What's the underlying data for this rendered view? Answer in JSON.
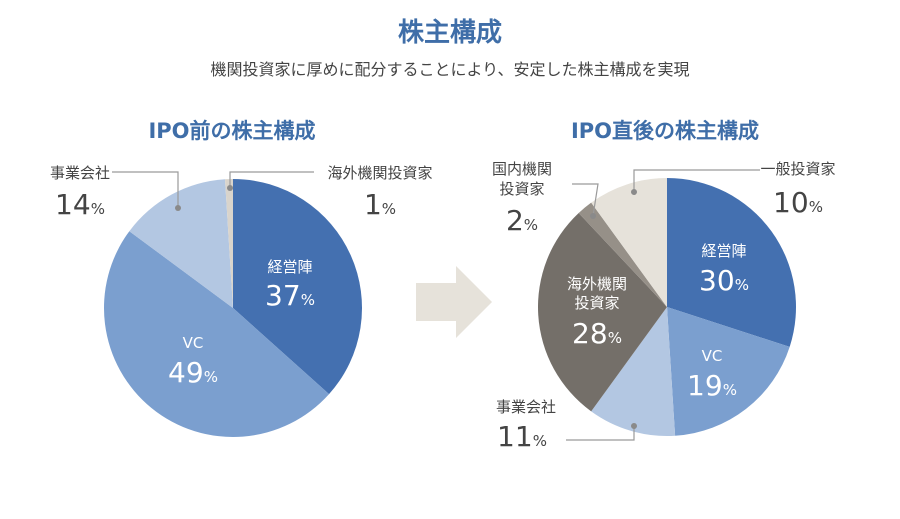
{
  "title": "株主構成",
  "subtitle": "機関投資家に厚めに配分することにより、安定した株主構成を実現",
  "colors": {
    "accent": "#3f6ea8",
    "management": "#4470b0",
    "vc": "#7b9fcf",
    "corporate": "#b3c7e2",
    "foreign_institutional": "#d9d4cc",
    "domestic_institutional": "#969088",
    "overseas_institutional": "#746f69",
    "retail": "#e6e2da",
    "arrow": "#e6e2da"
  },
  "chart_data": [
    {
      "type": "pie",
      "title": "IPO前の株主構成",
      "slices": [
        {
          "label": "経営陣",
          "value": 37,
          "text": "37%",
          "color": "#4470b0"
        },
        {
          "label": "VC",
          "value": 49,
          "text": "49%",
          "color": "#7b9fcf"
        },
        {
          "label": "事業会社",
          "value": 14,
          "text": "14%",
          "color": "#b3c7e2"
        },
        {
          "label": "海外機関投資家",
          "value": 1,
          "text": "1%",
          "color": "#d9d4cc"
        }
      ]
    },
    {
      "type": "pie",
      "title": "IPO直後の株主構成",
      "slices": [
        {
          "label": "経営陣",
          "value": 30,
          "text": "30%",
          "color": "#4470b0"
        },
        {
          "label": "VC",
          "value": 19,
          "text": "19%",
          "color": "#7b9fcf"
        },
        {
          "label": "事業会社",
          "value": 11,
          "text": "11%",
          "color": "#b3c7e2"
        },
        {
          "label": "海外機関投資家",
          "value": 28,
          "text": "28%",
          "color": "#746f69"
        },
        {
          "label": "国内機関投資家",
          "value": 2,
          "text": "2%",
          "color": "#969088"
        },
        {
          "label": "一般投資家",
          "value": 10,
          "text": "10%",
          "color": "#e6e2da"
        }
      ]
    }
  ]
}
